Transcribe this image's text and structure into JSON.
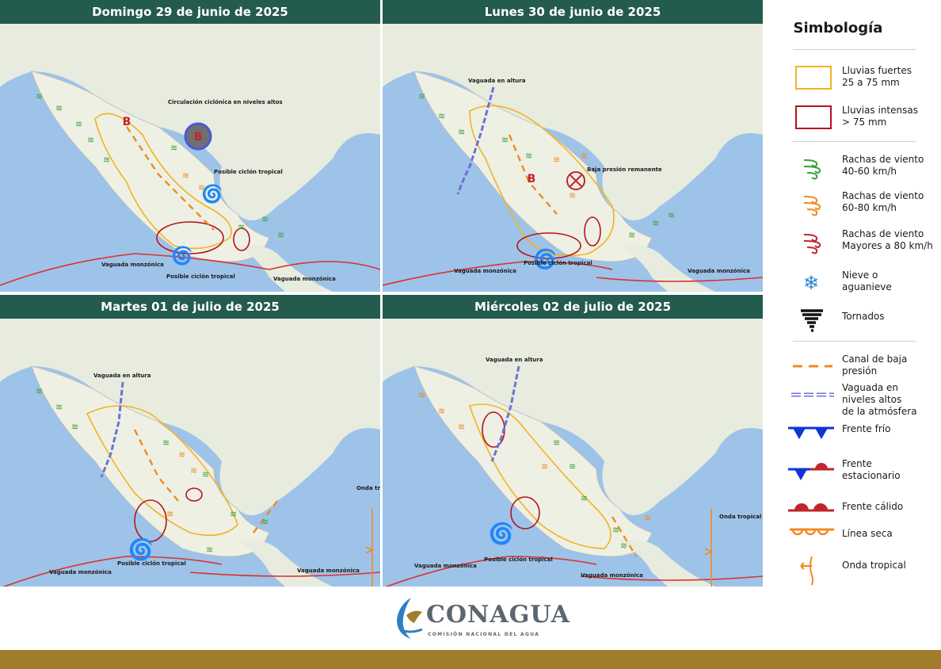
{
  "panels": [
    {
      "title": "Domingo 29 de junio de 2025",
      "labels": [
        "Circulación ciclónica en niveles altos",
        "Posible ciclón tropical",
        "Posible ciclón tropical",
        "Vaguada monzónica",
        "Vaguada monzónica"
      ]
    },
    {
      "title": "Lunes 30 de junio de 2025",
      "labels": [
        "Vaguada en altura",
        "Baja presión remanente",
        "Posible ciclón tropical",
        "Vaguada monzónica",
        "Vaguada monzónica"
      ]
    },
    {
      "title": "Martes 01 de julio de 2025",
      "labels": [
        "Vaguada en altura",
        "Posible ciclón tropical",
        "Onda tropical",
        "Vaguada monzónica",
        "Vaguada monzónica"
      ]
    },
    {
      "title": "Miércoles 02 de julio de 2025",
      "labels": [
        "Vaguada en altura",
        "Posible ciclón tropical",
        "Onda tropical",
        "Vaguada monzónica",
        "Vaguada monzónica"
      ]
    }
  ],
  "pressure_letter": "B",
  "legend": {
    "title": "Simbología",
    "items": [
      {
        "icon": "heavy-rain-box-icon",
        "label": "Lluvias fuertes\n25 a 75 mm"
      },
      {
        "icon": "intense-rain-box-icon",
        "label": "Lluvias intensas\n> 75 mm"
      },
      {
        "icon": "wind-green-icon",
        "label": "Rachas de viento\n40-60 km/h"
      },
      {
        "icon": "wind-orange-icon",
        "label": "Rachas de viento\n60-80 km/h"
      },
      {
        "icon": "wind-red-icon",
        "label": "Rachas de viento\nMayores a 80 km/h"
      },
      {
        "icon": "snowflake-icon",
        "label": "Nieve o\naguanieve"
      },
      {
        "icon": "tornado-icon",
        "label": "Tornados"
      },
      {
        "icon": "low-pressure-channel-icon",
        "label": "Canal de baja\npresión"
      },
      {
        "icon": "upper-trough-icon",
        "label": "Vaguada en\nniveles altos\nde la atmósfera"
      },
      {
        "icon": "cold-front-icon",
        "label": "Frente frío"
      },
      {
        "icon": "stationary-front-icon",
        "label": "Frente\nestacionario"
      },
      {
        "icon": "warm-front-icon",
        "label": "Frente cálido"
      },
      {
        "icon": "dry-line-icon",
        "label": "Línea seca"
      },
      {
        "icon": "tropical-wave-icon",
        "label": "Onda tropical"
      }
    ]
  },
  "colors": {
    "header": "#235b4e",
    "ocean": "#9ec3e8",
    "land": "#e9eee2",
    "yellow_rain": "#f2b320",
    "red_rain": "#b3141c",
    "wind_green": "#3aa13a",
    "wind_orange": "#ef8a22",
    "wind_red": "#c0262c",
    "trough_blue": "#6b72d8",
    "gold_bar": "#a27d2e"
  },
  "logo": {
    "name": "CONAGUA",
    "subtitle": "COMISIÓN NACIONAL DEL AGUA"
  }
}
